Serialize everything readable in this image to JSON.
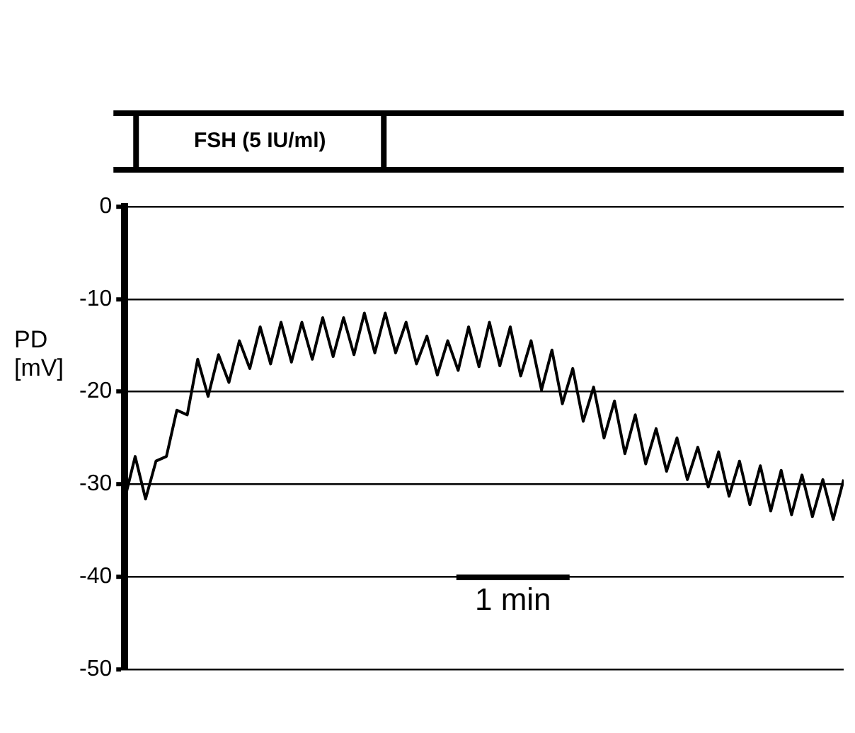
{
  "chart_data": {
    "type": "line",
    "ylabel": "PD [mV]",
    "annotations": [
      "FSH (5 IU/ml)",
      "1 min"
    ],
    "categories": [
      null,
      null,
      null,
      null,
      null,
      null,
      null,
      null,
      null,
      null,
      null,
      null,
      null,
      null,
      null,
      null,
      null,
      null,
      null,
      null,
      null,
      null,
      null,
      null,
      null,
      null,
      null,
      null,
      null,
      null,
      null,
      null,
      null,
      null,
      null,
      null,
      null,
      null,
      null,
      null,
      null,
      null,
      null,
      null,
      null,
      null,
      null,
      null,
      null,
      null,
      null,
      null,
      null,
      null,
      null,
      null,
      null,
      null,
      null,
      null,
      null,
      null,
      null,
      null,
      null,
      null,
      null,
      null,
      null,
      null
    ],
    "series": [
      {
        "color": "#000000",
        "values": [
          -31.6,
          -27,
          -31.6,
          -27.5,
          -27,
          -22,
          -22.5,
          -16.5,
          -20.5,
          -16,
          -19,
          -14.5,
          -17.5,
          -13,
          -17,
          -12.5,
          -16.8,
          -12.5,
          -16.5,
          -12,
          -16.2,
          -12,
          -16,
          -11.5,
          -15.8,
          -11.5,
          -15.8,
          -12.5,
          -17,
          -14,
          -18.2,
          -14.5,
          -17.7,
          -13,
          -17.3,
          -12.5,
          -17.2,
          -13,
          -18.3,
          -14.5,
          -19.8,
          -15.5,
          -21.3,
          -17.5,
          -23.2,
          -19.5,
          -25,
          -21,
          -26.7,
          -22.5,
          -27.8,
          -24,
          -28.6,
          -25,
          -29.5,
          -26,
          -30.3,
          -26.5,
          -31.3,
          -27.5,
          -32.2,
          -28,
          -32.9,
          -28.5,
          -33.3,
          -29,
          -33.5,
          -29.5,
          -33.8,
          -29.5
        ]
      }
    ],
    "ylim": [
      -50,
      0
    ],
    "yticks": [
      0,
      -10,
      -20,
      -30,
      -40,
      -50
    ],
    "tick_labels": "y",
    "marker": "none",
    "line_style": "solid",
    "legend": false,
    "grid": "y"
  }
}
